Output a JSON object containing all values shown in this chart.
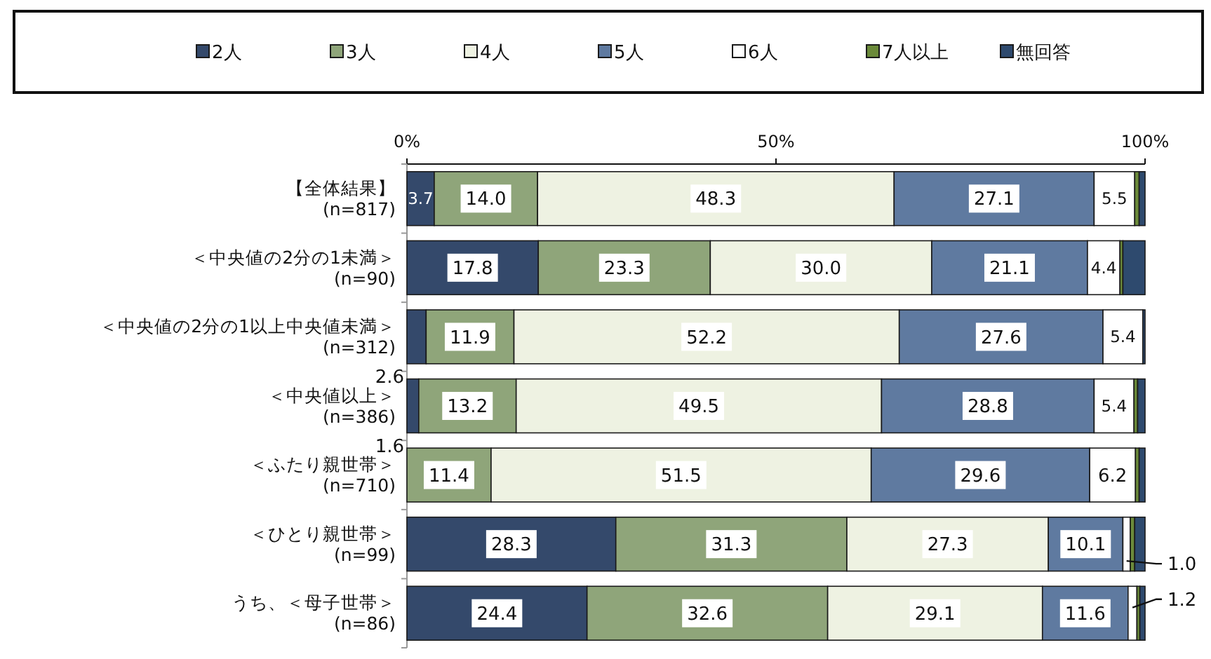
{
  "chart_data": {
    "type": "bar",
    "orientation": "horizontal",
    "stacked": true,
    "legend": "top",
    "grid": false,
    "categories": [
      "【全体結果】\n(n=817)",
      "＜中央値の2分の1未満＞\n(n=90)",
      "＜中央値の2分の1以上中央値未満＞\n(n=312)",
      "＜中央値以上＞\n(n=386)",
      "＜ふたり親世帯＞\n(n=710)",
      "＜ひとり親世帯＞\n(n=99)",
      "うち、＜母子世帯＞\n(n=86)"
    ],
    "xlim": [
      0,
      100
    ],
    "xticks": [
      {
        "value": 0,
        "label": "0%"
      },
      {
        "value": 50,
        "label": "50%"
      },
      {
        "value": 100,
        "label": "100%"
      }
    ],
    "series": [
      {
        "name": "2人",
        "color": "#34496b",
        "values": [
          3.7,
          17.8,
          2.6,
          1.6,
          null,
          28.3,
          24.4
        ],
        "value_labels": [
          "3.7",
          "17.8",
          "2.6",
          "1.6",
          null,
          "28.3",
          "24.4"
        ]
      },
      {
        "name": "3人",
        "color": "#8fa57a",
        "values": [
          14.0,
          23.3,
          11.9,
          13.2,
          11.4,
          31.3,
          32.6
        ],
        "value_labels": [
          "14.0",
          "23.3",
          "11.9",
          "13.2",
          "11.4",
          "31.3",
          "32.6"
        ]
      },
      {
        "name": "4人",
        "color": "#eef2e2",
        "values": [
          48.3,
          30.0,
          52.2,
          49.5,
          51.5,
          27.3,
          29.1
        ],
        "value_labels": [
          "48.3",
          "30.0",
          "52.2",
          "49.5",
          "51.5",
          "27.3",
          "29.1"
        ]
      },
      {
        "name": "5人",
        "color": "#5f7aa0",
        "values": [
          27.1,
          21.1,
          27.6,
          28.8,
          29.6,
          10.1,
          11.6
        ],
        "value_labels": [
          "27.1",
          "21.1",
          "27.6",
          "28.8",
          "29.6",
          "10.1",
          "11.6"
        ]
      },
      {
        "name": "6人",
        "color": "#ffffff",
        "values": [
          5.5,
          4.4,
          5.4,
          5.4,
          6.2,
          1.0,
          1.2
        ],
        "value_labels": [
          "5.5",
          "4.4",
          "5.4",
          "5.4",
          "6.2",
          "1.0",
          "1.2"
        ]
      },
      {
        "name": "7人以上",
        "color": "#6b8a3a",
        "values": [
          0.6,
          0.4,
          null,
          0.5,
          0.5,
          0.6,
          0.4
        ],
        "value_labels": [
          null,
          null,
          null,
          null,
          null,
          null,
          null
        ]
      },
      {
        "name": "無回答",
        "color": "#2e4a6e",
        "values": [
          0.8,
          3.0,
          0.3,
          1.0,
          0.8,
          1.4,
          0.7
        ],
        "value_labels": [
          null,
          null,
          null,
          null,
          null,
          null,
          null
        ]
      }
    ]
  }
}
